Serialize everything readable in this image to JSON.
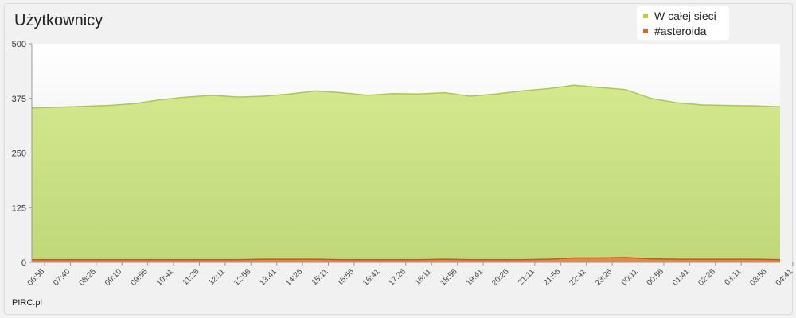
{
  "title": "Użytkownicy",
  "footer": "PIRC.pl",
  "legend": [
    {
      "label": "W całej sieci",
      "color": "#b5d43a"
    },
    {
      "label": "#asteroida",
      "color": "#d9662e"
    }
  ],
  "chart_data": {
    "type": "area",
    "title": "Użytkownicy",
    "ylim": [
      0,
      500
    ],
    "yticks": [
      0,
      125,
      250,
      375,
      500
    ],
    "grid": false,
    "legend_position": "top-right",
    "categories": [
      "06:55",
      "07:40",
      "08:25",
      "09:10",
      "09:55",
      "10:41",
      "11:26",
      "12:11",
      "12:56",
      "13:41",
      "14:26",
      "15:11",
      "15:56",
      "16:41",
      "17:26",
      "18:11",
      "18:56",
      "19:41",
      "20:26",
      "21:11",
      "21:56",
      "22:41",
      "23:26",
      "00:11",
      "00:56",
      "01:41",
      "02:26",
      "03:11",
      "03:56",
      "04:41"
    ],
    "series": [
      {
        "name": "W całej sieci",
        "color": "#b5d43a",
        "values": [
          353,
          355,
          357,
          359,
          363,
          372,
          378,
          382,
          378,
          380,
          385,
          392,
          388,
          382,
          386,
          385,
          388,
          380,
          385,
          392,
          397,
          405,
          400,
          395,
          375,
          365,
          360,
          359,
          358,
          356
        ]
      },
      {
        "name": "#asteroida",
        "color": "#d9662e",
        "values": [
          6,
          6,
          6,
          6,
          6,
          6,
          6,
          6,
          6,
          7,
          7,
          7,
          6,
          6,
          6,
          6,
          7,
          6,
          6,
          6,
          7,
          10,
          10,
          11,
          8,
          7,
          7,
          7,
          7,
          6
        ]
      }
    ]
  }
}
